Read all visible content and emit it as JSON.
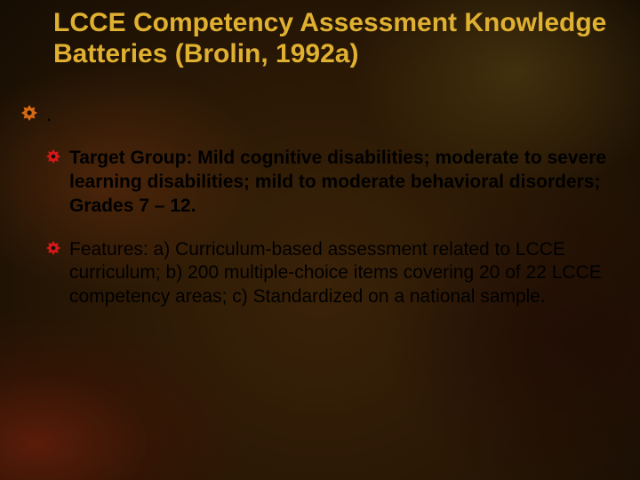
{
  "slide": {
    "background_colors": {
      "base_gradient": [
        "#3a2208",
        "#2a1805",
        "#160d03"
      ],
      "glow_bottom_left": "#64200a",
      "glow_mid_left": "#6e3210",
      "glow_right": "#1e0a05",
      "glow_top_right": "#5a4614"
    },
    "title": {
      "text": "LCCE Competency Assessment Knowledge Batteries (Brolin, 1992a)",
      "color": "#e0b030",
      "font_size_pt": 30,
      "font_weight": "bold"
    },
    "bullets": [
      {
        "level": 1,
        "text": ".",
        "bold": false,
        "gear_color": "#d86a14",
        "gear_size": 18,
        "font_size_pt": 22
      },
      {
        "level": 2,
        "text": "Target Group: Mild cognitive disabilities;  moderate to severe learning disabilities; mild to moderate behavioral disorders; Grades 7 – 12.",
        "bold": true,
        "gear_color": "#d81818",
        "gear_size": 16,
        "font_size_pt": 21
      },
      {
        "level": 2,
        "text": "Features: a) Curriculum-based assessment related to LCCE curriculum; b) 200 multiple-choice items covering 20 of 22 LCCE competency areas; c) Standardized on a national sample.",
        "bold": false,
        "gear_color": "#d81818",
        "gear_size": 16,
        "font_size_pt": 21
      }
    ],
    "body_text_color": "#000000"
  }
}
